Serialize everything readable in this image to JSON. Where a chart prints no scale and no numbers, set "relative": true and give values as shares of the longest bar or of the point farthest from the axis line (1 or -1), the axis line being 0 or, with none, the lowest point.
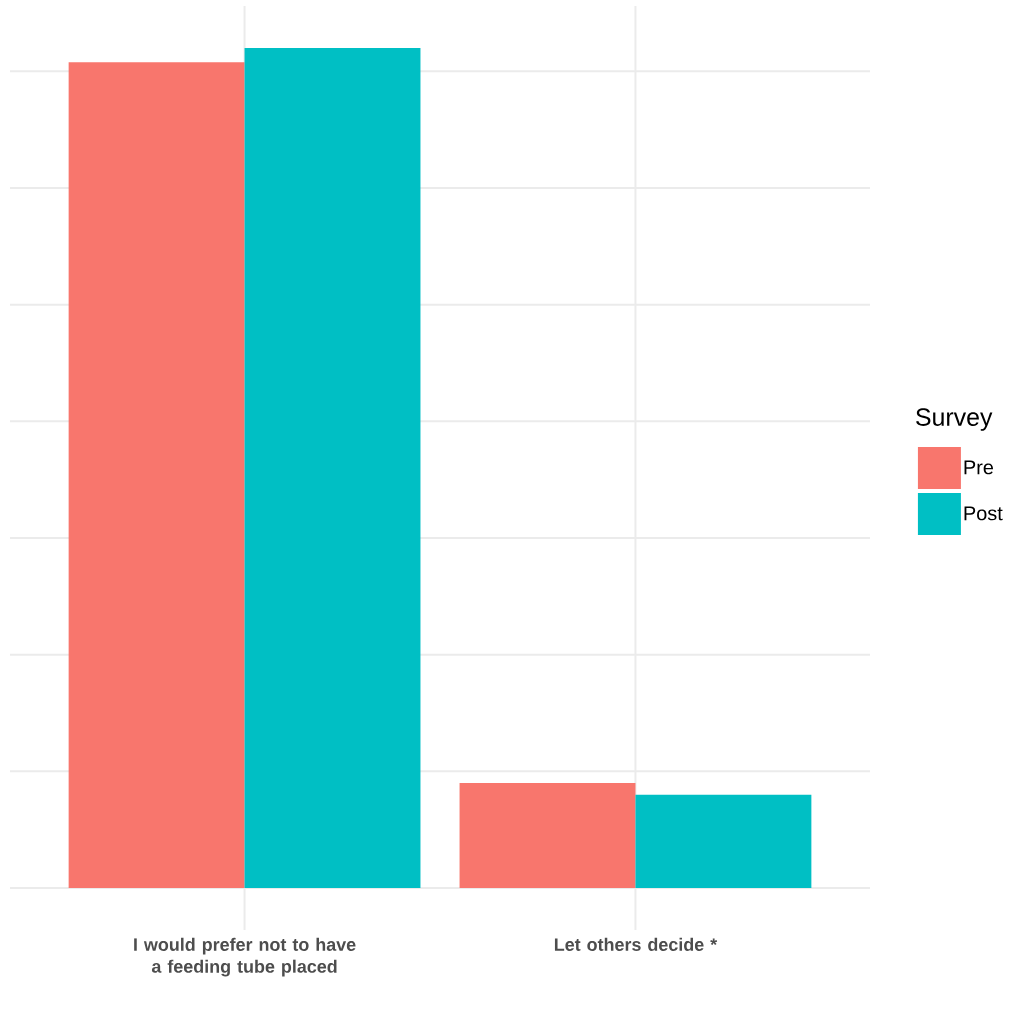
{
  "chart_data": {
    "type": "bar",
    "relative": true,
    "categories": [
      "I would prefer not to have a feeding tube placed",
      "Let others decide *"
    ],
    "series": [
      {
        "name": "Pre",
        "color": "#f8766d",
        "values": [
          0.983,
          0.125
        ]
      },
      {
        "name": "Post",
        "color": "#00bfc4",
        "values": [
          1,
          0.111
        ]
      }
    ],
    "legend_title": "Survey",
    "legend": "right",
    "grid": true,
    "tick_labels": "x"
  }
}
